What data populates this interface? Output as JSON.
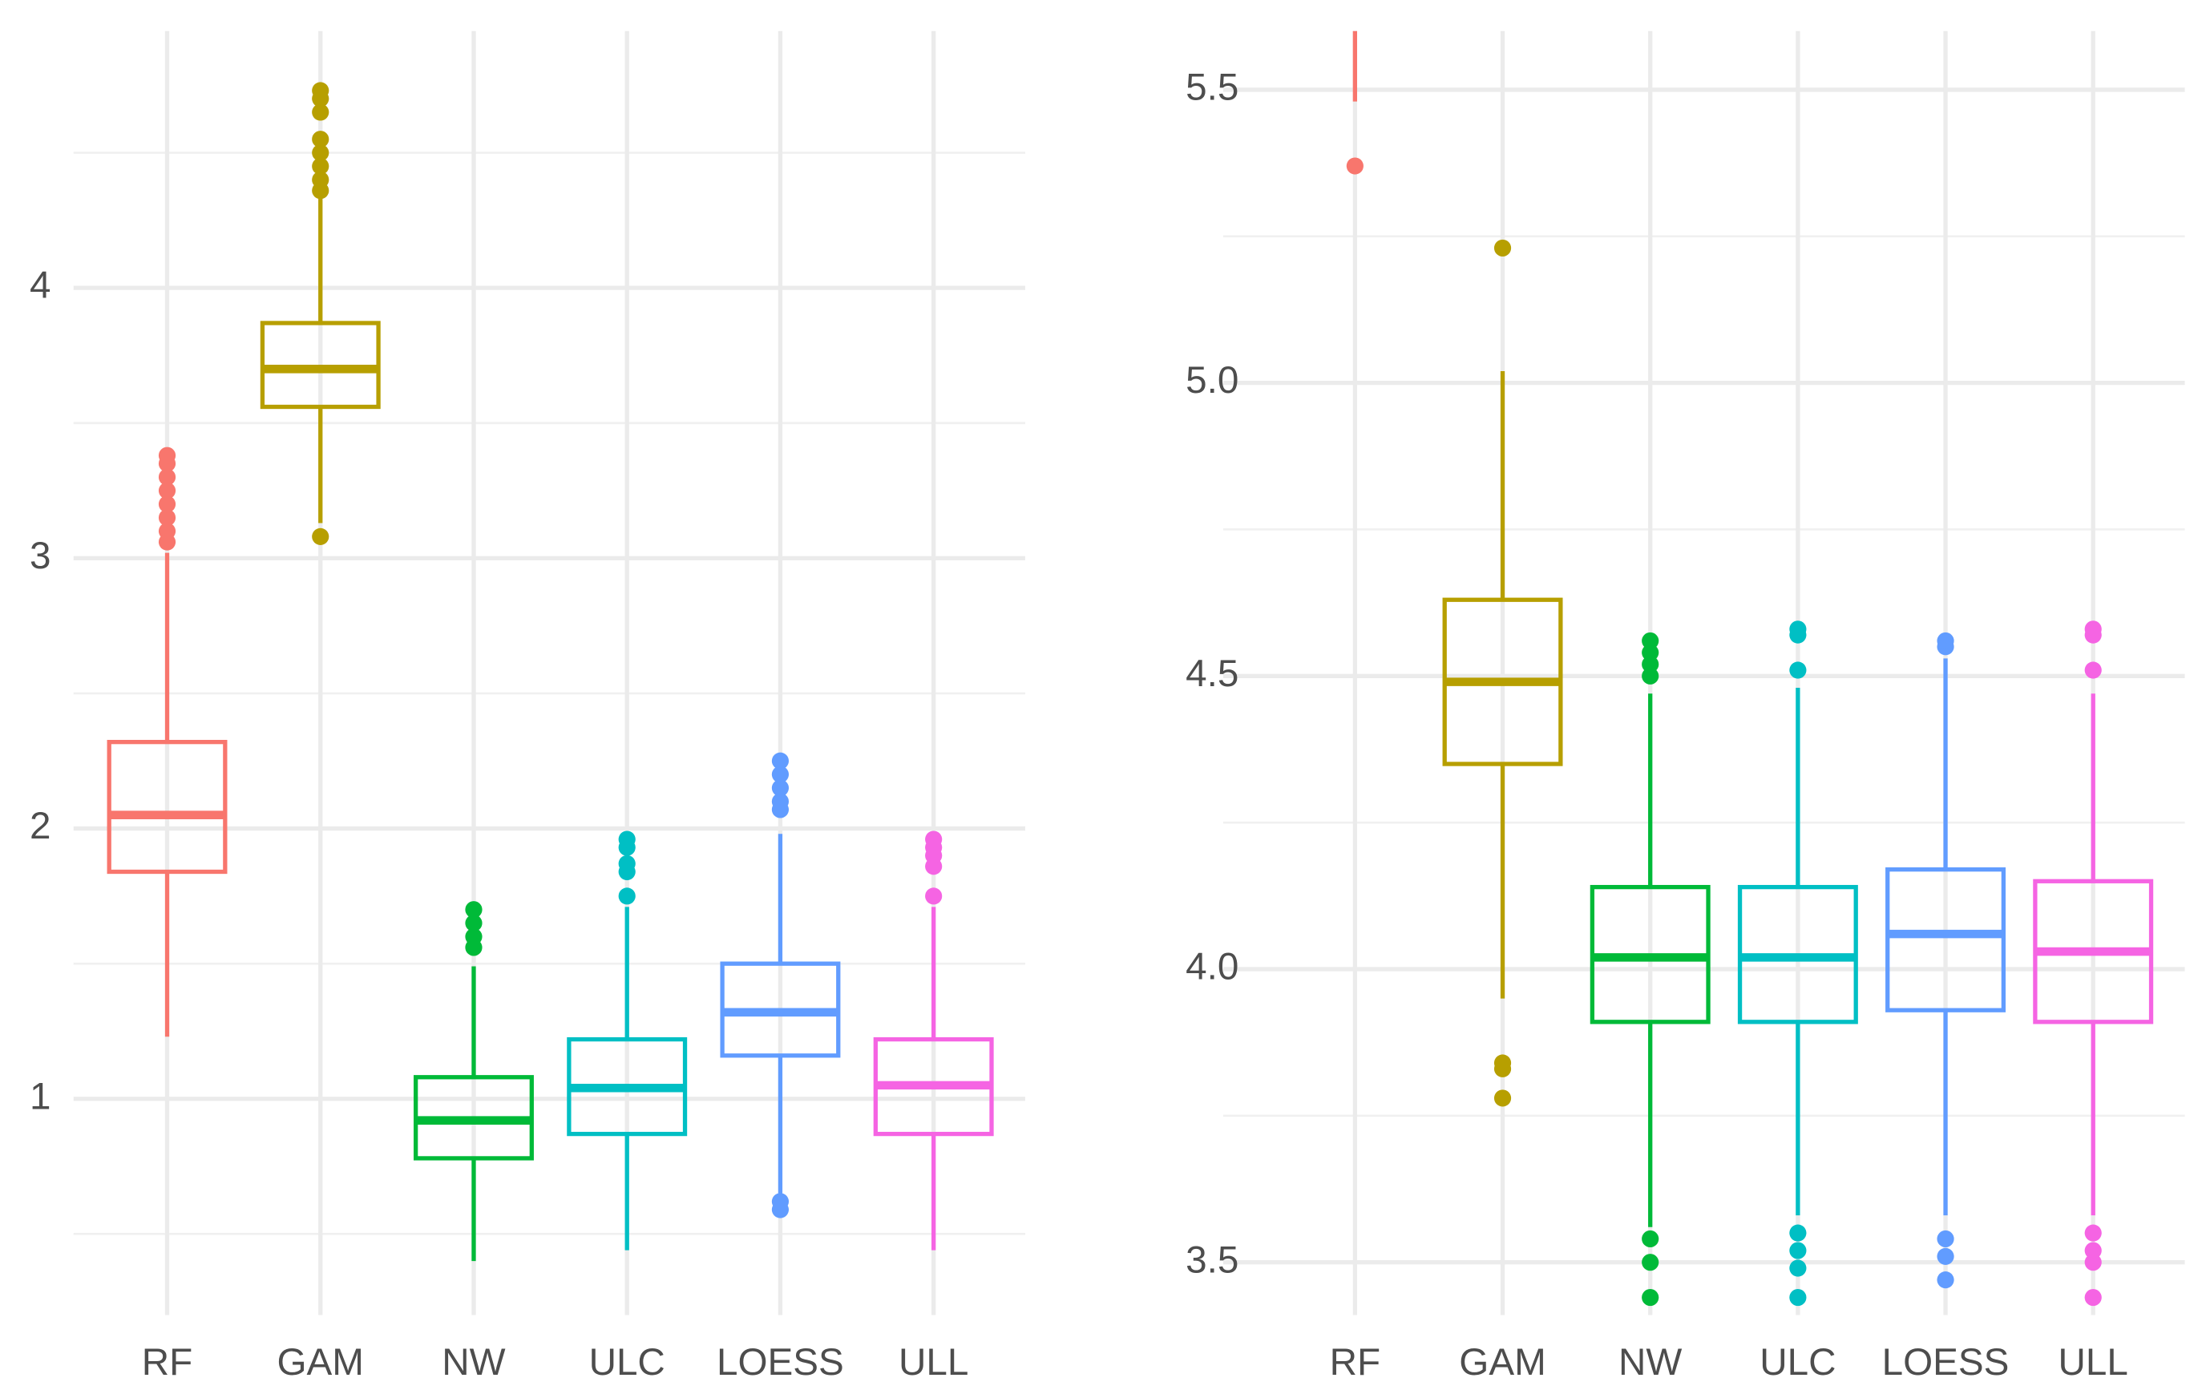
{
  "chart_data": [
    {
      "type": "box",
      "categories": [
        "RF",
        "GAM",
        "NW",
        "ULC",
        "LOESS",
        "ULL"
      ],
      "colors": [
        "#f8766d",
        "#b79f00",
        "#00ba38",
        "#00bfc4",
        "#619cff",
        "#f564e3"
      ],
      "ylim": [
        0.2,
        4.95
      ],
      "yticks": [
        1,
        2,
        3,
        4
      ],
      "grid": true,
      "boxes": [
        {
          "whisker_low": 1.23,
          "q1": 1.84,
          "median": 2.05,
          "q3": 2.32,
          "whisker_high": 3.02,
          "outliers": [
            3.06,
            3.1,
            3.15,
            3.2,
            3.25,
            3.3,
            3.35,
            3.38
          ]
        },
        {
          "whisker_low": 3.13,
          "q1": 3.56,
          "median": 3.7,
          "q3": 3.87,
          "whisker_high": 4.33,
          "outliers": [
            3.08,
            4.36,
            4.4,
            4.45,
            4.5,
            4.55,
            4.65,
            4.7,
            4.73
          ]
        },
        {
          "whisker_low": 0.4,
          "q1": 0.78,
          "median": 0.92,
          "q3": 1.08,
          "whisker_high": 1.49,
          "outliers": [
            1.56,
            1.6,
            1.65,
            1.7
          ]
        },
        {
          "whisker_low": 0.44,
          "q1": 0.87,
          "median": 1.04,
          "q3": 1.22,
          "whisker_high": 1.71,
          "outliers": [
            1.75,
            1.84,
            1.87,
            1.93,
            1.96
          ]
        },
        {
          "whisker_low": 0.65,
          "q1": 1.16,
          "median": 1.32,
          "q3": 1.5,
          "whisker_high": 1.98,
          "outliers": [
            0.59,
            0.62,
            2.07,
            2.1,
            2.15,
            2.2,
            2.25
          ]
        },
        {
          "whisker_low": 0.44,
          "q1": 0.87,
          "median": 1.05,
          "q3": 1.22,
          "whisker_high": 1.71,
          "outliers": [
            1.75,
            1.86,
            1.9,
            1.93,
            1.96
          ]
        }
      ]
    },
    {
      "type": "box",
      "categories": [
        "RF",
        "GAM",
        "NW",
        "ULC",
        "LOESS",
        "ULL"
      ],
      "colors": [
        "#f8766d",
        "#b79f00",
        "#00ba38",
        "#00bfc4",
        "#619cff",
        "#f564e3"
      ],
      "ylim": [
        3.41,
        5.6
      ],
      "yticks": [
        3.5,
        {
          "value": 4,
          "label": "4.0"
        },
        4.5,
        {
          "value": 5,
          "label": "5.0"
        },
        5.5
      ],
      "grid": true,
      "boxes": [
        {
          "whisker_low": 5.48,
          "q1": null,
          "median": null,
          "q3": null,
          "whisker_high": null,
          "outliers": [
            5.37
          ]
        },
        {
          "whisker_low": 3.95,
          "q1": 4.35,
          "median": 4.49,
          "q3": 4.63,
          "whisker_high": 5.02,
          "outliers": [
            3.78,
            3.83,
            3.84,
            5.23
          ]
        },
        {
          "whisker_low": 3.56,
          "q1": 3.91,
          "median": 4.02,
          "q3": 4.14,
          "whisker_high": 4.47,
          "outliers": [
            3.44,
            3.5,
            3.54,
            4.5,
            4.52,
            4.54,
            4.56
          ]
        },
        {
          "whisker_low": 3.58,
          "q1": 3.91,
          "median": 4.02,
          "q3": 4.14,
          "whisker_high": 4.48,
          "outliers": [
            3.44,
            3.49,
            3.52,
            3.55,
            4.51,
            4.57,
            4.58
          ]
        },
        {
          "whisker_low": 3.58,
          "q1": 3.93,
          "median": 4.06,
          "q3": 4.17,
          "whisker_high": 4.53,
          "outliers": [
            3.47,
            3.51,
            3.54,
            4.55,
            4.56
          ]
        },
        {
          "whisker_low": 3.58,
          "q1": 3.91,
          "median": 4.03,
          "q3": 4.15,
          "whisker_high": 4.47,
          "outliers": [
            3.44,
            3.5,
            3.52,
            3.55,
            4.51,
            4.57,
            4.58
          ]
        }
      ]
    }
  ]
}
